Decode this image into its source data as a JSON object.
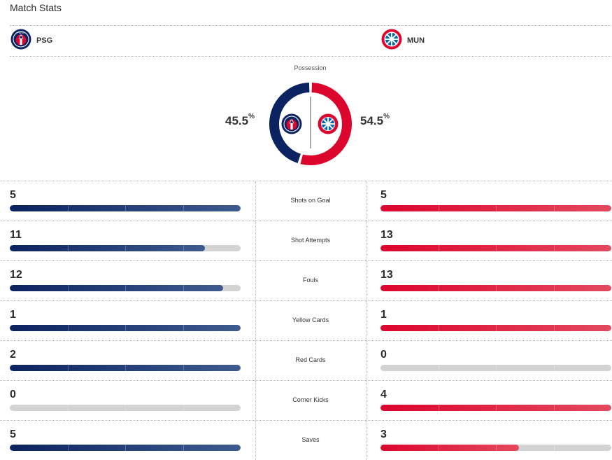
{
  "title": "Match Stats",
  "colors": {
    "home": "#0b2361",
    "home_light": "#3e5b8f",
    "away": "#dc052d",
    "away_light": "#e3495f",
    "track": "#d3d3d3"
  },
  "home": {
    "abbr": "PSG",
    "crest": "psg-crest-icon"
  },
  "away": {
    "abbr": "MUN",
    "crest": "bayern-crest-icon"
  },
  "possession": {
    "label": "Possession",
    "home_value": "45.5",
    "away_value": "54.5",
    "unit": "%",
    "home_fraction": 0.455
  },
  "stats": [
    {
      "label": "Shots on Goal",
      "home": "5",
      "away": "5",
      "home_fill": 1.0,
      "away_fill": 1.0
    },
    {
      "label": "Shot Attempts",
      "home": "11",
      "away": "13",
      "home_fill": 0.846,
      "away_fill": 1.0
    },
    {
      "label": "Fouls",
      "home": "12",
      "away": "13",
      "home_fill": 0.923,
      "away_fill": 1.0
    },
    {
      "label": "Yellow Cards",
      "home": "1",
      "away": "1",
      "home_fill": 1.0,
      "away_fill": 1.0
    },
    {
      "label": "Red Cards",
      "home": "2",
      "away": "0",
      "home_fill": 1.0,
      "away_fill": 0.0
    },
    {
      "label": "Corner Kicks",
      "home": "0",
      "away": "4",
      "home_fill": 0.0,
      "away_fill": 1.0
    },
    {
      "label": "Saves",
      "home": "5",
      "away": "3",
      "home_fill": 1.0,
      "away_fill": 0.6
    }
  ]
}
